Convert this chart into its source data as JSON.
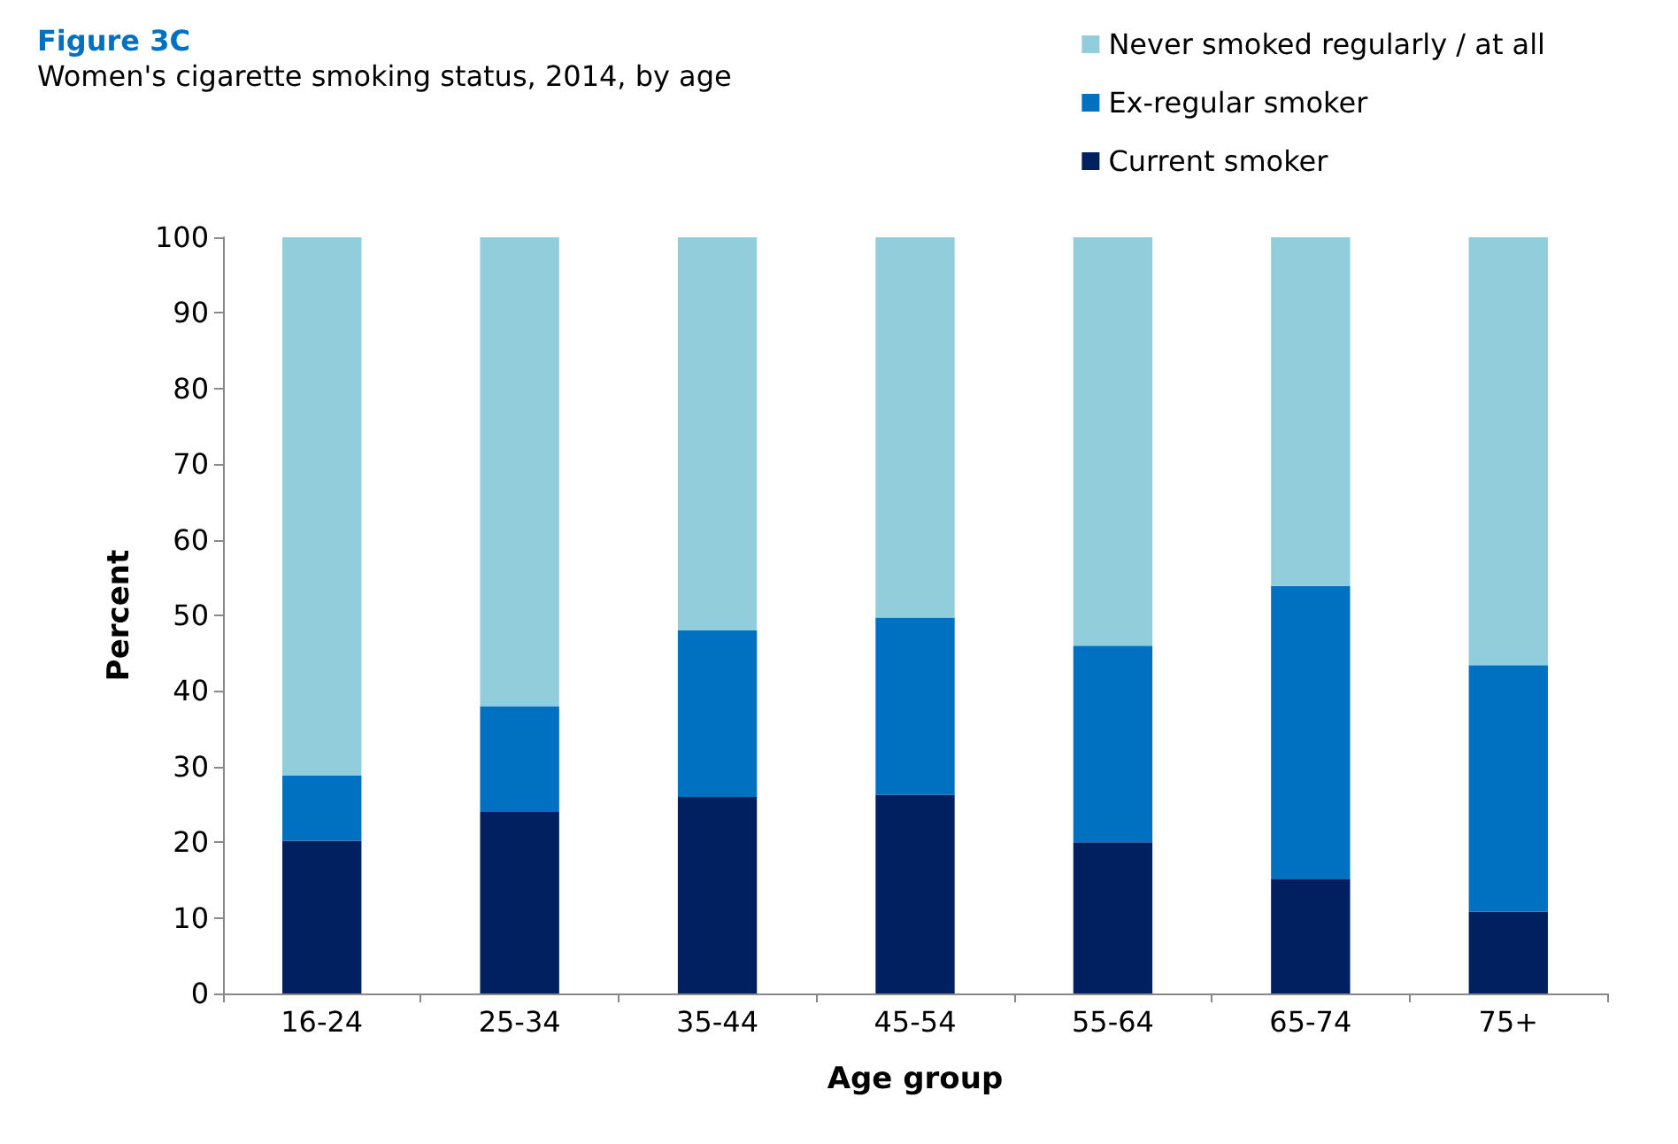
{
  "chart_data": {
    "type": "bar",
    "title": "Figure 3C",
    "subtitle": "Women's cigarette smoking status, 2014, by age",
    "xlabel": "Age group",
    "ylabel": "Percent",
    "categories": [
      "16-24",
      "25-34",
      "35-44",
      "45-54",
      "55-64",
      "65-74",
      "75+"
    ],
    "stacked": true,
    "series": [
      {
        "name": "Current smoker",
        "color": "#002060",
        "values": [
          20.2,
          24,
          26,
          26.3,
          20,
          15.1,
          10.8
        ]
      },
      {
        "name": "Ex-regular smoker",
        "color": "#0070c0",
        "values": [
          8.6,
          14,
          22,
          23.4,
          26,
          38.8,
          32.6
        ]
      },
      {
        "name": "Never smoked regularly / at all",
        "color": "#92cddc",
        "values": [
          71.2,
          62,
          52,
          50.3,
          54,
          46.1,
          56.6
        ]
      }
    ],
    "ylim": [
      0,
      100
    ],
    "yticks": [
      0,
      10,
      20,
      30,
      40,
      50,
      60,
      70,
      80,
      90,
      100
    ],
    "grid": false,
    "legend": "top right"
  }
}
